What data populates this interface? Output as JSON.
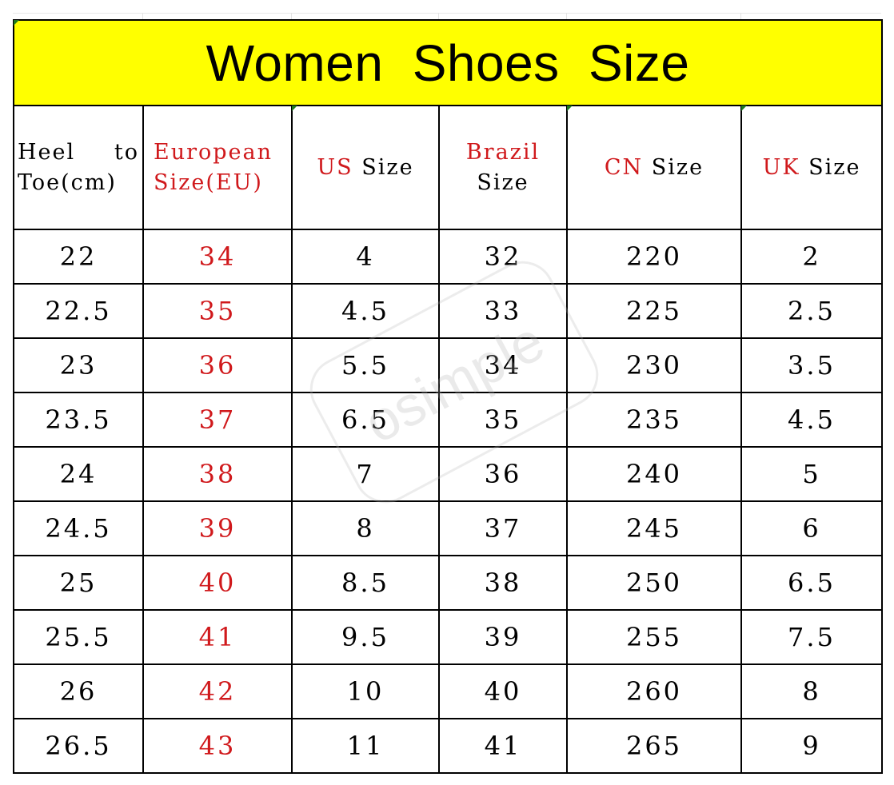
{
  "title": "Women Shoes Size",
  "watermark": "osimple",
  "colors": {
    "title_background": "#ffff00",
    "accent_red": "#d0191c",
    "border": "#000000"
  },
  "headers": [
    {
      "red": "",
      "black": "Heel to Toe(cm)"
    },
    {
      "red": "European Size(EU)",
      "black": ""
    },
    {
      "red": "US",
      "black": "Size"
    },
    {
      "red": "Brazil",
      "black": "Size"
    },
    {
      "red": "CN",
      "black": "Size"
    },
    {
      "red": "UK",
      "black": "Size"
    }
  ],
  "rows": [
    [
      "22",
      "34",
      "4",
      "32",
      "220",
      "2"
    ],
    [
      "22.5",
      "35",
      "4.5",
      "33",
      "225",
      "2.5"
    ],
    [
      "23",
      "36",
      "5.5",
      "34",
      "230",
      "3.5"
    ],
    [
      "23.5",
      "37",
      "6.5",
      "35",
      "235",
      "4.5"
    ],
    [
      "24",
      "38",
      "7",
      "36",
      "240",
      "5"
    ],
    [
      "24.5",
      "39",
      "8",
      "37",
      "245",
      "6"
    ],
    [
      "25",
      "40",
      "8.5",
      "38",
      "250",
      "6.5"
    ],
    [
      "25.5",
      "41",
      "9.5",
      "39",
      "255",
      "7.5"
    ],
    [
      "26",
      "42",
      "10",
      "40",
      "260",
      "8"
    ],
    [
      "26.5",
      "43",
      "11",
      "41",
      "265",
      "9"
    ]
  ]
}
